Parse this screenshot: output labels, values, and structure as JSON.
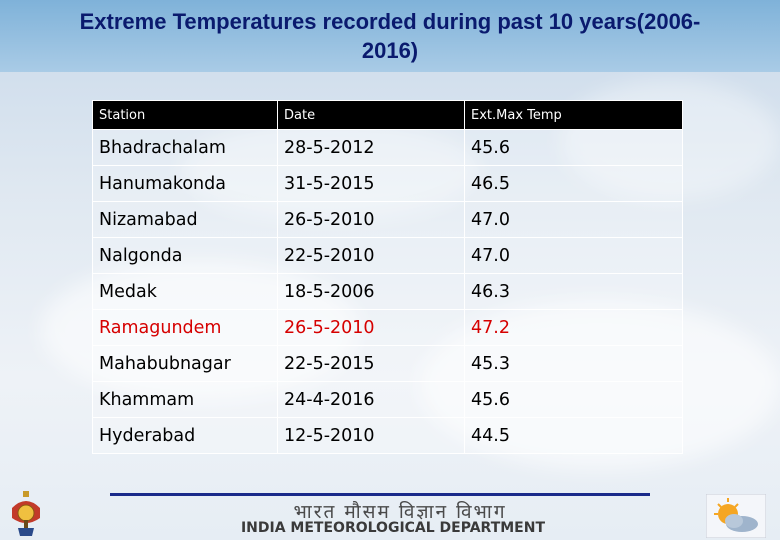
{
  "slide": {
    "title": "Extreme Temperatures recorded during past 10 years(2006-2016)"
  },
  "table": {
    "headers": [
      "Station",
      "Date",
      "Ext.Max Temp"
    ],
    "rows": [
      {
        "station": "Bhadrachalam",
        "date": "28-5-2012",
        "temp": "45.6",
        "highlight": false
      },
      {
        "station": "Hanumakonda",
        "date": "31-5-2015",
        "temp": "46.5",
        "highlight": false
      },
      {
        "station": "Nizamabad",
        "date": "26-5-2010",
        "temp": "47.0",
        "highlight": false
      },
      {
        "station": "Nalgonda",
        "date": "22-5-2010",
        "temp": "47.0",
        "highlight": false
      },
      {
        "station": "Medak",
        "date": "18-5-2006",
        "temp": "46.3",
        "highlight": false
      },
      {
        "station": "Ramagundem",
        "date": "26-5-2010",
        "temp": "47.2",
        "highlight": true
      },
      {
        "station": "Mahabubnagar",
        "date": "22-5-2015",
        "temp": "45.3",
        "highlight": false
      },
      {
        "station": "Khammam",
        "date": "24-4-2016",
        "temp": "45.6",
        "highlight": false
      },
      {
        "station": "Hyderabad",
        "date": "12-5-2010",
        "temp": "44.5",
        "highlight": false
      }
    ],
    "highlight_color": "#d60000"
  },
  "footer": {
    "hindi_name": "भारत मौसम विज्ञान विभाग",
    "department": "INDIA METEOROLOGICAL DEPARTMENT",
    "left_logo_icon": "emblem-icon",
    "right_logo_icon": "sun-cloud-icon"
  }
}
